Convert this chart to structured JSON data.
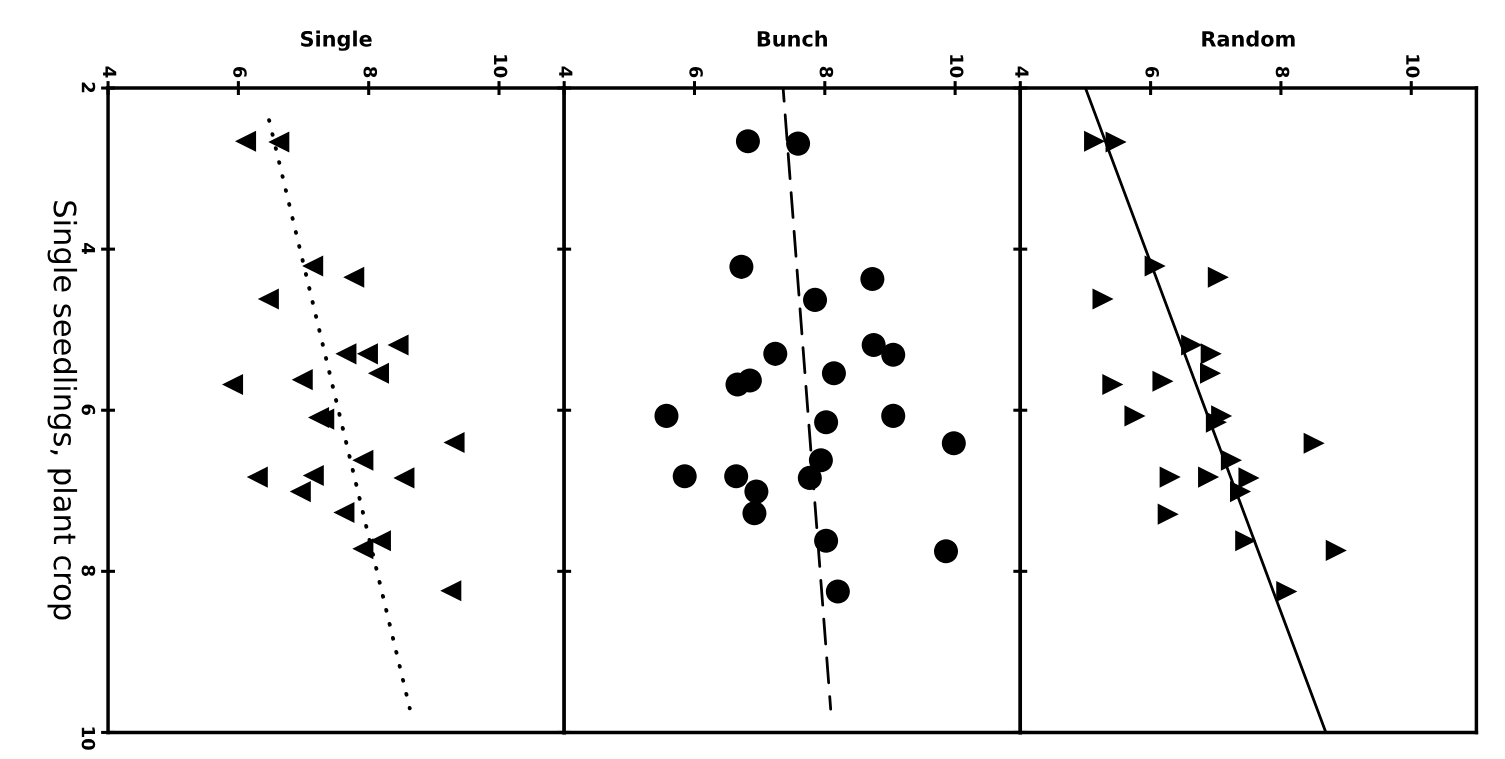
{
  "chart_data": [
    {
      "type": "scatter",
      "title": "Single",
      "ylabel": "Single seedlings, plant crop",
      "xlim": [
        4,
        11
      ],
      "xticks": [
        4,
        6,
        8,
        10
      ],
      "ylim": [
        10,
        2
      ],
      "yticks": [
        2,
        4,
        6,
        8,
        10
      ],
      "grid": false,
      "series": [
        {
          "type": "scatter",
          "color": "#000000",
          "marker": "triangle-left",
          "x": [
            6.11,
            6.62,
            7.14,
            7.77,
            6.46,
            7.65,
            7.98,
            8.45,
            8.15,
            5.91,
            6.98,
            7.23,
            7.31,
            9.31,
            7.91,
            6.29,
            7.15,
            6.95,
            8.54,
            7.62,
            8.18,
            7.91,
            9.26
          ],
          "values": [
            2.66,
            2.67,
            4.21,
            4.35,
            4.62,
            5.3,
            5.3,
            5.19,
            5.54,
            5.68,
            5.62,
            6.09,
            6.11,
            6.4,
            6.62,
            6.83,
            6.81,
            7.01,
            6.84,
            7.27,
            7.62,
            7.72,
            8.24
          ]
        },
        {
          "type": "line",
          "color": "#000000",
          "line_style": "dotted",
          "x": [
            6.46,
            8.63
          ],
          "values": [
            2.36,
            9.7
          ]
        }
      ]
    },
    {
      "type": "scatter",
      "title": "Bunch",
      "xlim": [
        4,
        11
      ],
      "xticks": [
        4,
        6,
        8,
        10
      ],
      "ylim": [
        10,
        2
      ],
      "yticks": [
        2,
        4,
        6,
        8,
        10
      ],
      "grid": false,
      "tick_labels": "x",
      "series": [
        {
          "type": "scatter",
          "color": "#000000",
          "marker": "circle",
          "x": [
            6.82,
            7.59,
            6.72,
            8.73,
            7.85,
            7.24,
            8.75,
            9.05,
            8.14,
            6.66,
            6.85,
            5.57,
            8.02,
            9.05,
            9.98,
            7.94,
            5.85,
            6.64,
            7.77,
            6.95,
            6.92,
            8.02,
            9.86,
            8.2
          ],
          "values": [
            2.66,
            2.69,
            4.22,
            4.37,
            4.63,
            5.3,
            5.19,
            5.31,
            5.54,
            5.68,
            5.63,
            6.07,
            6.15,
            6.07,
            6.41,
            6.62,
            6.82,
            6.82,
            6.84,
            7.01,
            7.28,
            7.62,
            7.75,
            8.25
          ]
        },
        {
          "type": "line",
          "color": "#000000",
          "line_style": "dashed",
          "x": [
            7.36,
            8.09
          ],
          "values": [
            2.0,
            9.71
          ]
        }
      ]
    },
    {
      "type": "scatter",
      "title": "Random",
      "xlim": [
        4,
        11
      ],
      "xticks": [
        4,
        6,
        8,
        10
      ],
      "ylim": [
        10,
        2
      ],
      "yticks": [
        2,
        4,
        6,
        8,
        10
      ],
      "grid": false,
      "tick_labels": "x",
      "series": [
        {
          "type": "scatter",
          "color": "#000000",
          "marker": "triangle-right",
          "x": [
            5.14,
            5.47,
            6.07,
            7.04,
            5.27,
            6.63,
            6.93,
            6.92,
            5.42,
            6.19,
            5.76,
            7.09,
            7.01,
            8.51,
            7.24,
            6.3,
            6.89,
            7.51,
            7.38,
            6.27,
            7.46,
            8.85,
            8.09
          ],
          "values": [
            2.66,
            2.67,
            4.21,
            4.35,
            4.62,
            5.19,
            5.3,
            5.54,
            5.68,
            5.64,
            6.07,
            6.07,
            6.15,
            6.41,
            6.62,
            6.83,
            6.83,
            6.84,
            7.01,
            7.29,
            7.62,
            7.74,
            8.25
          ]
        },
        {
          "type": "line",
          "color": "#000000",
          "line_style": "solid",
          "x": [
            5.0,
            8.69
          ],
          "values": [
            2.0,
            10.0
          ]
        }
      ]
    }
  ]
}
